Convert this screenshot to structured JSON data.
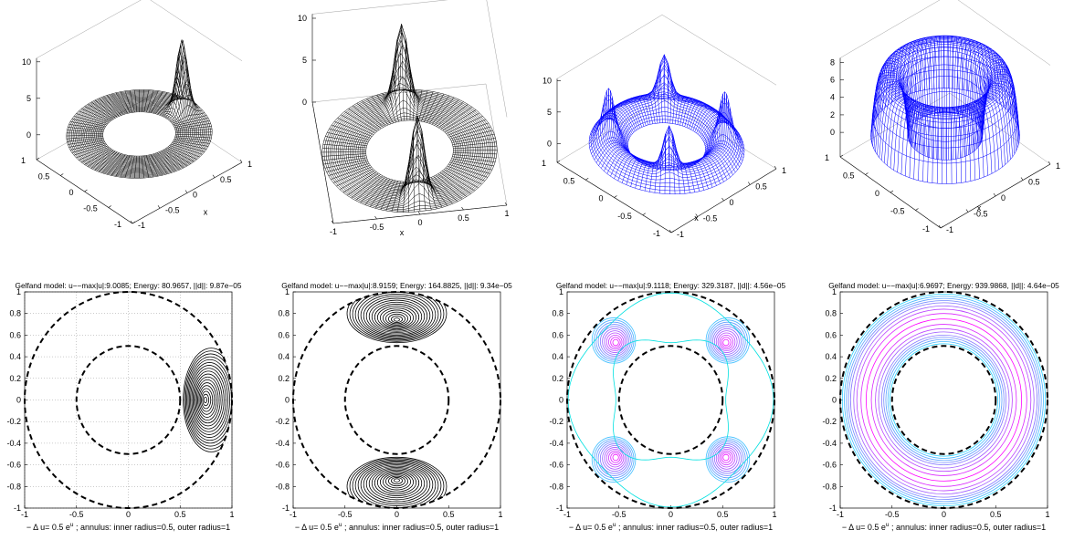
{
  "top_panels": [
    {
      "zticks": [
        0,
        5,
        10
      ],
      "yticks": [
        -1,
        -0.5,
        0,
        0.5,
        1
      ],
      "xticks": [
        -1,
        -0.5,
        0,
        0.5,
        1
      ],
      "xlabel": "x",
      "color": "#000000"
    },
    {
      "zticks": [
        0,
        5,
        10
      ],
      "xticks": [
        -1,
        -0.5,
        0,
        0.5,
        1
      ],
      "xlabel": "x",
      "color": "#000000"
    },
    {
      "zticks": [
        0,
        5,
        10
      ],
      "yticks": [
        -1,
        -0.5,
        0,
        0.5,
        1
      ],
      "xticks": [
        -1,
        -0.5,
        0,
        0.5,
        1
      ],
      "xlabel": "x",
      "color": "#0000ff"
    },
    {
      "zticks": [
        0,
        2,
        4,
        6,
        8
      ],
      "yticks": [
        -1,
        -0.5,
        0,
        0.5,
        1
      ],
      "xticks": [
        -1,
        -0.5,
        0,
        0.5,
        1
      ],
      "xlabel": "x",
      "color": "#0000ff"
    }
  ],
  "bottom_panels": [
    {
      "title": "Gelfand model: u−−max|u|:9.0085;  Energy: 80.9657, ||d||: 9.87e−05",
      "xticks": [
        -1,
        -0.5,
        0,
        0.5,
        1
      ],
      "yticks": [
        -1,
        -0.8,
        -0.6,
        -0.4,
        -0.2,
        0,
        0.2,
        0.4,
        0.6,
        0.8,
        1
      ],
      "grid": true,
      "caption": {
        "text": "− Δ u= 0.5 e",
        "superscript": "u",
        "rest": " ; annulus: inner radius=0.5, outer radius=1"
      }
    },
    {
      "title": "Gelfand model: u−−max|u|:8.9159;  Energy: 164.8825, ||d||: 9.34e−05",
      "xticks": [
        -1,
        -0.5,
        0,
        0.5,
        1
      ],
      "yticks": [
        -1,
        -0.8,
        -0.6,
        -0.4,
        -0.2,
        0,
        0.2,
        0.4,
        0.6,
        0.8,
        1
      ],
      "grid": false,
      "caption": {
        "text": "− Δ u= 0.5 e",
        "superscript": "u",
        "rest": " ; annulus: inner radius=0.5, outer radius=1"
      }
    },
    {
      "title": "Gelfand model: u−−max|u|:9.1118;  Energy: 329.3187, ||d||: 4.56e−05",
      "xticks": [
        -1,
        -0.5,
        0,
        0.5,
        1
      ],
      "yticks": [
        -1,
        -0.8,
        -0.6,
        -0.4,
        -0.2,
        0,
        0.2,
        0.4,
        0.6,
        0.8,
        1
      ],
      "grid": false,
      "caption": {
        "text": "− Δ u= 0.5 e",
        "superscript": "u",
        "rest": " ; annulus: inner radius=0.5, outer radius=1"
      }
    },
    {
      "title": "Gelfand model: u−−max|u|:6.9697;  Energy: 939.9868, ||d||: 4.64e−05",
      "xticks": [
        -1,
        -0.5,
        0,
        0.5,
        1
      ],
      "yticks": [
        -1,
        -0.8,
        -0.6,
        -0.4,
        -0.2,
        0,
        0.2,
        0.4,
        0.6,
        0.8,
        1
      ],
      "grid": false,
      "caption": {
        "text": "− Δ u= 0.5 e",
        "superscript": "u",
        "rest": " ; annulus: inner radius=0.5, outer radius=1"
      }
    }
  ]
}
